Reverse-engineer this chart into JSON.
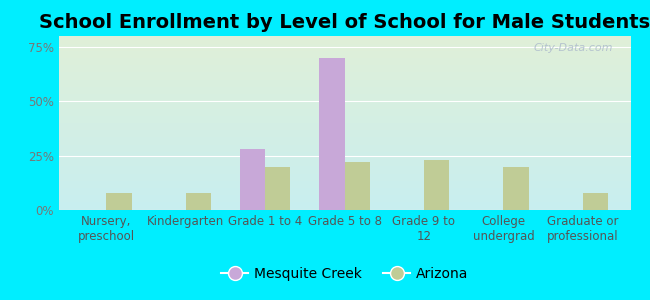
{
  "title": "School Enrollment by Level of School for Male Students",
  "categories": [
    "Nursery,\npreschool",
    "Kindergarten",
    "Grade 1 to 4",
    "Grade 5 to 8",
    "Grade 9 to\n12",
    "College\nundergrad",
    "Graduate or\nprofessional"
  ],
  "mesquite_creek": [
    0,
    0,
    28,
    70,
    0,
    0,
    0
  ],
  "arizona": [
    8,
    8,
    20,
    22,
    23,
    20,
    8
  ],
  "mesquite_color": "#c8a8d8",
  "arizona_color": "#c0cc96",
  "background_outer": "#00eeff",
  "background_inner_top": "#e0f0d8",
  "background_inner_bottom": "#c8eef0",
  "yticks": [
    0,
    25,
    50,
    75
  ],
  "ylim": [
    0,
    80
  ],
  "bar_width": 0.32,
  "title_fontsize": 14,
  "tick_fontsize": 8.5,
  "legend_fontsize": 10,
  "watermark": "City-Data.com"
}
